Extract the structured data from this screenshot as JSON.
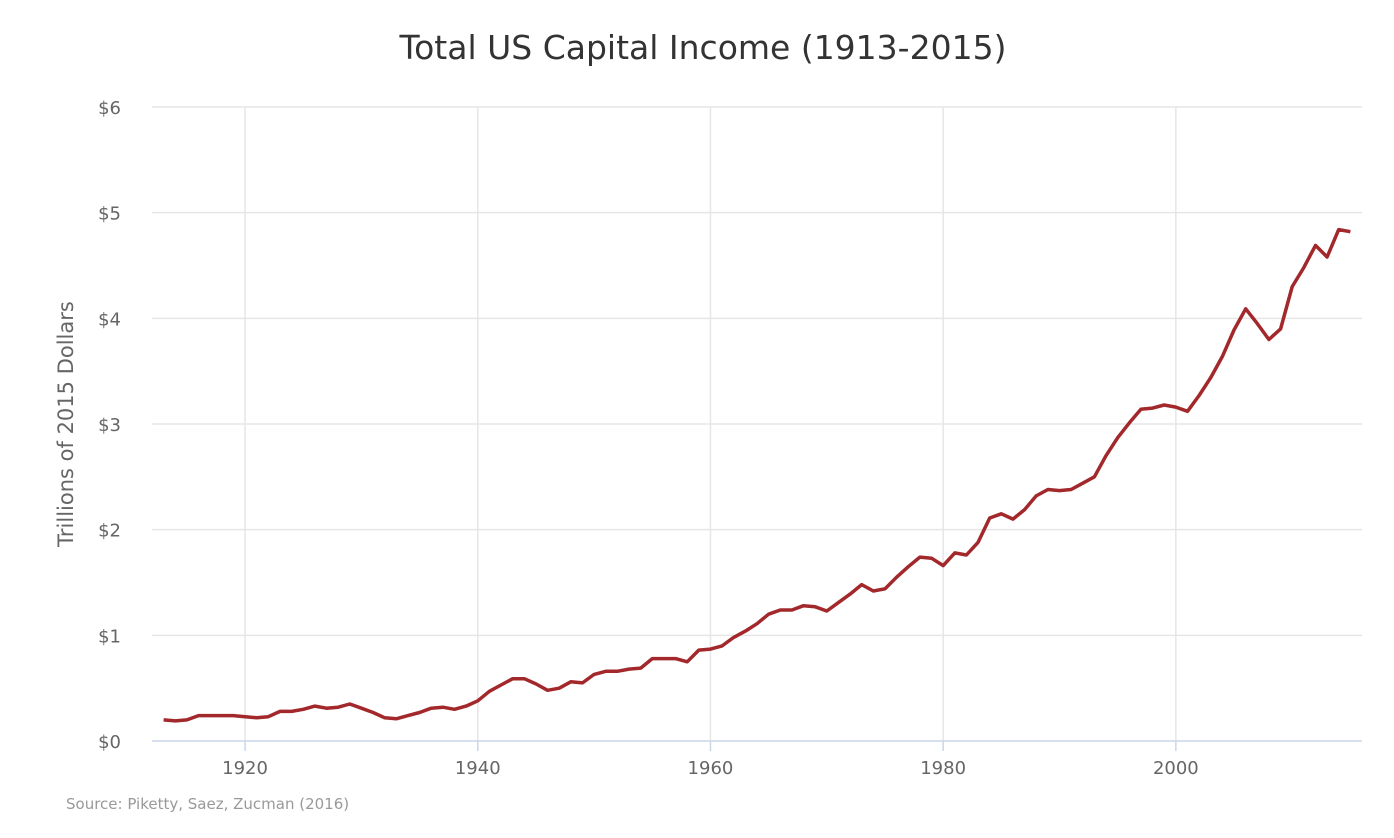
{
  "chart_data": {
    "type": "line",
    "title": "Total US Capital Income (1913-2015)",
    "xlabel": "",
    "ylabel": "Trillions of 2015 Dollars",
    "source": "Source: Piketty, Saez, Zucman (2016)",
    "xlim": [
      1912,
      2016
    ],
    "ylim": [
      0,
      6
    ],
    "x_ticks": [
      1920,
      1940,
      1960,
      1980,
      2000
    ],
    "y_ticks": [
      0,
      1,
      2,
      3,
      4,
      5,
      6
    ],
    "y_tick_labels": [
      "$0",
      "$1",
      "$2",
      "$3",
      "$4",
      "$5",
      "$6"
    ],
    "grid": true,
    "line_color": "#a3282b",
    "x": [
      1913,
      1914,
      1915,
      1916,
      1917,
      1918,
      1919,
      1920,
      1921,
      1922,
      1923,
      1924,
      1925,
      1926,
      1927,
      1928,
      1929,
      1930,
      1931,
      1932,
      1933,
      1934,
      1935,
      1936,
      1937,
      1938,
      1939,
      1940,
      1941,
      1942,
      1943,
      1944,
      1945,
      1946,
      1947,
      1948,
      1949,
      1950,
      1951,
      1952,
      1953,
      1954,
      1955,
      1956,
      1957,
      1958,
      1959,
      1960,
      1961,
      1962,
      1963,
      1964,
      1965,
      1966,
      1967,
      1968,
      1969,
      1970,
      1971,
      1972,
      1973,
      1974,
      1975,
      1976,
      1977,
      1978,
      1979,
      1980,
      1981,
      1982,
      1983,
      1984,
      1985,
      1986,
      1987,
      1988,
      1989,
      1990,
      1991,
      1992,
      1993,
      1994,
      1995,
      1996,
      1997,
      1998,
      1999,
      2000,
      2001,
      2002,
      2003,
      2004,
      2005,
      2006,
      2007,
      2008,
      2009,
      2010,
      2011,
      2012,
      2013,
      2014,
      2015
    ],
    "values": [
      0.2,
      0.19,
      0.2,
      0.24,
      0.24,
      0.24,
      0.24,
      0.23,
      0.22,
      0.23,
      0.28,
      0.28,
      0.3,
      0.33,
      0.31,
      0.32,
      0.35,
      0.31,
      0.27,
      0.22,
      0.21,
      0.24,
      0.27,
      0.31,
      0.32,
      0.3,
      0.33,
      0.38,
      0.47,
      0.53,
      0.59,
      0.59,
      0.54,
      0.48,
      0.5,
      0.56,
      0.55,
      0.63,
      0.66,
      0.66,
      0.68,
      0.69,
      0.78,
      0.78,
      0.78,
      0.75,
      0.86,
      0.87,
      0.9,
      0.98,
      1.04,
      1.11,
      1.2,
      1.24,
      1.24,
      1.28,
      1.27,
      1.23,
      1.31,
      1.39,
      1.48,
      1.42,
      1.44,
      1.55,
      1.65,
      1.74,
      1.73,
      1.66,
      1.78,
      1.76,
      1.88,
      2.11,
      2.15,
      2.1,
      2.19,
      2.32,
      2.38,
      2.37,
      2.38,
      2.44,
      2.5,
      2.7,
      2.87,
      3.01,
      3.14,
      3.15,
      3.18,
      3.16,
      3.12,
      3.27,
      3.44,
      3.64,
      3.89,
      4.09,
      3.95,
      3.8,
      3.9,
      4.3,
      4.48,
      4.69,
      4.58,
      4.84,
      4.82
    ]
  }
}
